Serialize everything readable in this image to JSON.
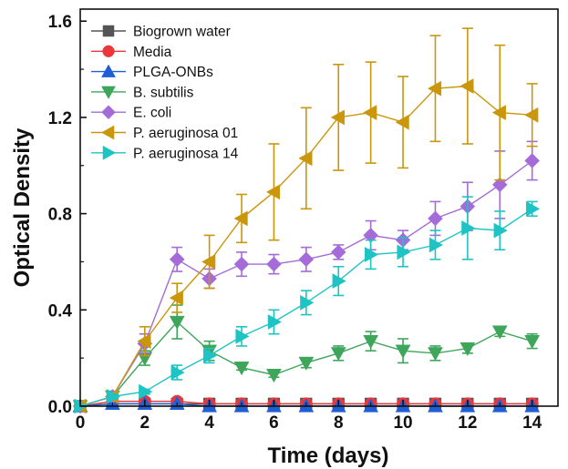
{
  "chart_data": {
    "type": "line",
    "xlabel": "Time (days)",
    "ylabel": "Optical Density",
    "xlim": [
      0,
      14.8
    ],
    "ylim": [
      0,
      1.65
    ],
    "x_ticks": [
      0,
      2,
      4,
      6,
      8,
      10,
      12,
      14
    ],
    "x_tick_labels": [
      "0",
      "2",
      "4",
      "6",
      "8",
      "10",
      "12",
      "14"
    ],
    "y_ticks": [
      0.0,
      0.4,
      0.8,
      1.2,
      1.6
    ],
    "y_tick_labels": [
      "0.0",
      "0.4",
      "0.8",
      "1.2",
      "1.6"
    ],
    "legend_position": "top-left",
    "series": [
      {
        "name": "Biogrown water",
        "color": "#555555",
        "marker": "square",
        "x": [
          0,
          1,
          2,
          3,
          4,
          5,
          6,
          7,
          8,
          9,
          10,
          11,
          12,
          13,
          14
        ],
        "y": [
          0.0,
          0.01,
          0.01,
          0.01,
          0.01,
          0.01,
          0.01,
          0.01,
          0.01,
          0.01,
          0.01,
          0.01,
          0.01,
          0.01,
          0.01
        ],
        "err": [
          0,
          0,
          0,
          0,
          0,
          0,
          0,
          0,
          0,
          0,
          0,
          0,
          0,
          0,
          0
        ]
      },
      {
        "name": "Media",
        "color": "#e8383b",
        "marker": "circle",
        "x": [
          0,
          1,
          2,
          3,
          4,
          5,
          6,
          7,
          8,
          9,
          10,
          11,
          12,
          13,
          14
        ],
        "y": [
          0.0,
          0.02,
          0.02,
          0.02,
          0.01,
          0.01,
          0.01,
          0.01,
          0.01,
          0.01,
          0.01,
          0.01,
          0.01,
          0.01,
          0.01
        ],
        "err": [
          0,
          0,
          0,
          0,
          0,
          0,
          0,
          0,
          0,
          0,
          0,
          0,
          0,
          0,
          0
        ]
      },
      {
        "name": "PLGA-ONBs",
        "color": "#1f5fd6",
        "marker": "triangle-up",
        "x": [
          0,
          1,
          2,
          3,
          4,
          5,
          6,
          7,
          8,
          9,
          10,
          11,
          12,
          13,
          14
        ],
        "y": [
          0.0,
          0.01,
          0.01,
          0.01,
          0.0,
          0.0,
          0.0,
          0.0,
          0.0,
          0.0,
          0.0,
          0.0,
          0.0,
          0.0,
          0.0
        ],
        "err": [
          0,
          0,
          0,
          0,
          0,
          0,
          0,
          0,
          0,
          0,
          0,
          0,
          0,
          0,
          0
        ]
      },
      {
        "name": "B. subtilis",
        "color": "#3ea65a",
        "marker": "triangle-down",
        "x": [
          0,
          1,
          2,
          3,
          4,
          5,
          6,
          7,
          8,
          9,
          10,
          11,
          12,
          13,
          14
        ],
        "y": [
          0.0,
          0.04,
          0.2,
          0.35,
          0.23,
          0.16,
          0.13,
          0.18,
          0.22,
          0.27,
          0.23,
          0.22,
          0.24,
          0.31,
          0.27
        ],
        "err": [
          0,
          0.01,
          0.03,
          0.07,
          0.04,
          0.01,
          0.01,
          0.02,
          0.03,
          0.04,
          0.05,
          0.03,
          0.02,
          0.02,
          0.03
        ]
      },
      {
        "name": "E. coli",
        "color": "#a56bd8",
        "marker": "diamond",
        "x": [
          0,
          1,
          2,
          3,
          4,
          5,
          6,
          7,
          8,
          9,
          10,
          11,
          12,
          13,
          14
        ],
        "y": [
          0.0,
          0.04,
          0.26,
          0.61,
          0.53,
          0.59,
          0.59,
          0.61,
          0.64,
          0.71,
          0.69,
          0.78,
          0.83,
          0.92,
          1.02
        ],
        "err": [
          0,
          0.01,
          0.04,
          0.05,
          0.04,
          0.05,
          0.04,
          0.05,
          0.03,
          0.06,
          0.04,
          0.07,
          0.1,
          0.14,
          0.08
        ]
      },
      {
        "name": "P. aeruginosa 01",
        "color": "#c9960c",
        "marker": "triangle-left",
        "x": [
          0,
          1,
          2,
          3,
          4,
          5,
          6,
          7,
          8,
          9,
          10,
          11,
          12,
          13,
          14
        ],
        "y": [
          0.0,
          0.04,
          0.27,
          0.45,
          0.6,
          0.78,
          0.89,
          1.03,
          1.2,
          1.22,
          1.18,
          1.32,
          1.33,
          1.22,
          1.21
        ],
        "err": [
          0,
          0.01,
          0.06,
          0.06,
          0.11,
          0.1,
          0.2,
          0.21,
          0.22,
          0.21,
          0.19,
          0.22,
          0.24,
          0.28,
          0.13
        ]
      },
      {
        "name": "P. aeruginosa 14",
        "color": "#1ec4c4",
        "marker": "triangle-right",
        "x": [
          0,
          1,
          2,
          3,
          4,
          5,
          6,
          7,
          8,
          9,
          10,
          11,
          12,
          13,
          14
        ],
        "y": [
          0.0,
          0.04,
          0.06,
          0.14,
          0.21,
          0.29,
          0.35,
          0.43,
          0.52,
          0.63,
          0.64,
          0.67,
          0.74,
          0.73,
          0.82
        ],
        "err": [
          0,
          0.01,
          0.01,
          0.03,
          0.03,
          0.04,
          0.05,
          0.05,
          0.06,
          0.06,
          0.06,
          0.06,
          0.13,
          0.08,
          0.03
        ]
      }
    ]
  }
}
